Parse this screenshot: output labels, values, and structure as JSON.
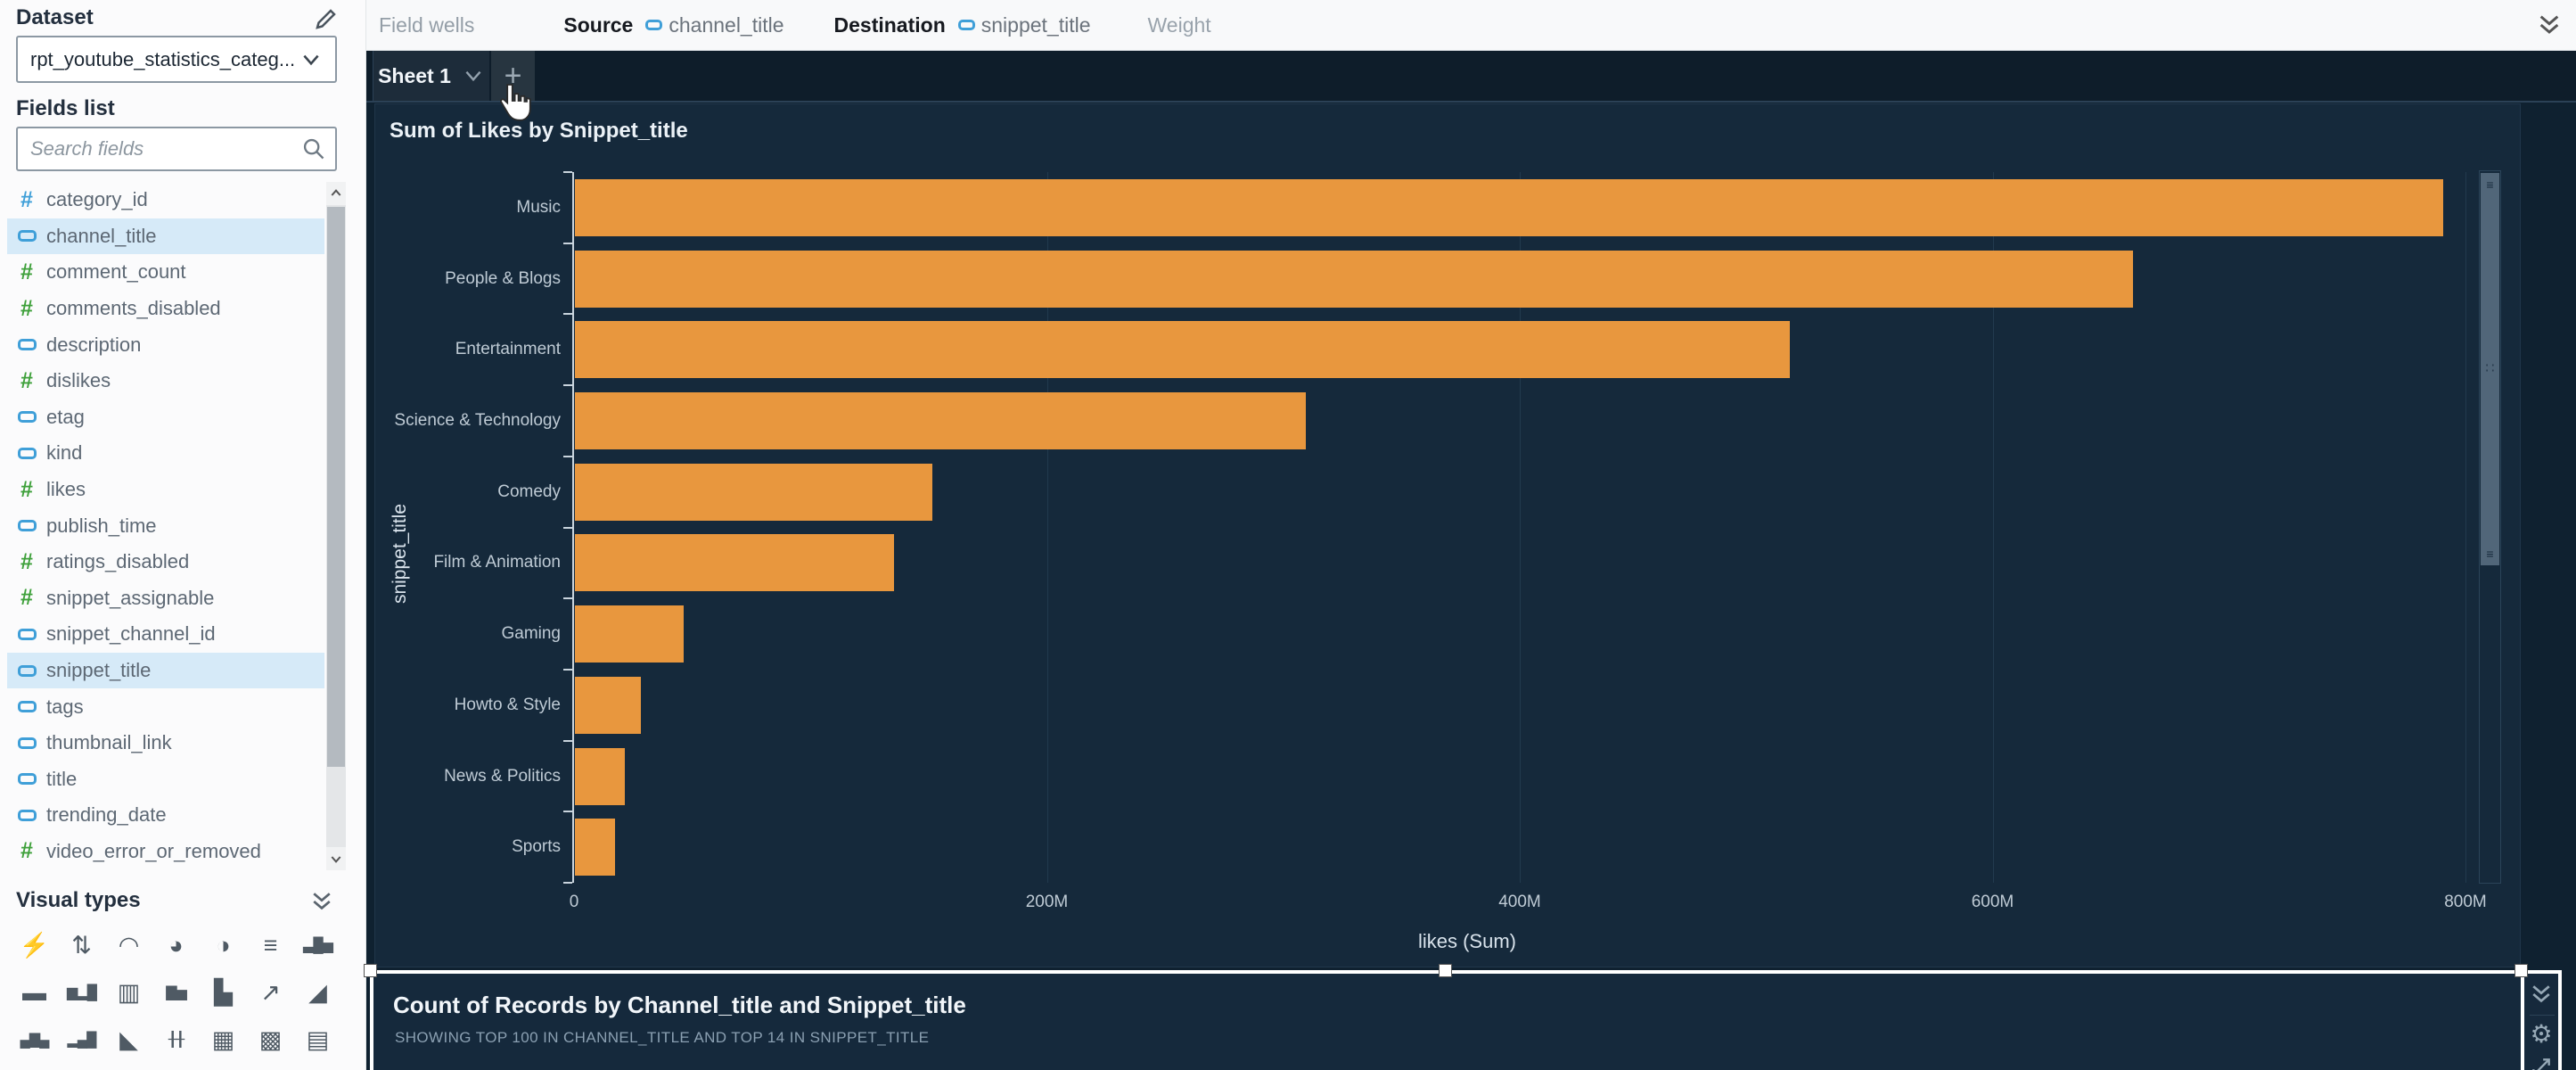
{
  "sidebar": {
    "dataset_label": "Dataset",
    "dataset_value": "rpt_youtube_statistics_categ...",
    "fields_list_label": "Fields list",
    "search_placeholder": "Search fields",
    "fields": [
      {
        "name": "category_id",
        "type": "numeric-dimension",
        "selected": false
      },
      {
        "name": "channel_title",
        "type": "dimension",
        "selected": true
      },
      {
        "name": "comment_count",
        "type": "measure",
        "selected": false
      },
      {
        "name": "comments_disabled",
        "type": "measure",
        "selected": false
      },
      {
        "name": "description",
        "type": "dimension",
        "selected": false
      },
      {
        "name": "dislikes",
        "type": "measure",
        "selected": false
      },
      {
        "name": "etag",
        "type": "dimension",
        "selected": false
      },
      {
        "name": "kind",
        "type": "dimension",
        "selected": false
      },
      {
        "name": "likes",
        "type": "measure",
        "selected": false
      },
      {
        "name": "publish_time",
        "type": "dimension",
        "selected": false
      },
      {
        "name": "ratings_disabled",
        "type": "measure",
        "selected": false
      },
      {
        "name": "snippet_assignable",
        "type": "measure",
        "selected": false
      },
      {
        "name": "snippet_channel_id",
        "type": "dimension",
        "selected": false
      },
      {
        "name": "snippet_title",
        "type": "dimension",
        "selected": true
      },
      {
        "name": "tags",
        "type": "dimension",
        "selected": false
      },
      {
        "name": "thumbnail_link",
        "type": "dimension",
        "selected": false
      },
      {
        "name": "title",
        "type": "dimension",
        "selected": false
      },
      {
        "name": "trending_date",
        "type": "dimension",
        "selected": false
      },
      {
        "name": "video_error_or_removed",
        "type": "measure",
        "selected": false
      }
    ],
    "visual_types_label": "Visual types",
    "visual_types": [
      {
        "name": "auto-graph",
        "glyph": "⚡"
      },
      {
        "name": "kpi",
        "glyph": "⇅"
      },
      {
        "name": "gauge-chart",
        "glyph": "◠"
      },
      {
        "name": "donut-chart",
        "glyph": "◕"
      },
      {
        "name": "pie-chart",
        "glyph": "◑"
      },
      {
        "name": "horizontal-stacked-bar-chart",
        "glyph": "≡"
      },
      {
        "name": "vertical-bar-chart",
        "glyph": "▃█▅"
      },
      {
        "name": "horizontal-bar-chart",
        "glyph": "▬"
      },
      {
        "name": "vertical-bar-clustered-chart",
        "glyph": "▆▂█"
      },
      {
        "name": "horizontal-stacked-100-bar-chart",
        "glyph": "▥"
      },
      {
        "name": "vertical-stacked-bar-chart",
        "glyph": "▇▅"
      },
      {
        "name": "waterfall-chart",
        "glyph": "▙"
      },
      {
        "name": "line-chart",
        "glyph": "↗"
      },
      {
        "name": "area-chart",
        "glyph": "◢"
      },
      {
        "name": "combo-bar-line-chart",
        "glyph": "▄▇▄"
      },
      {
        "name": "combo-clustered-chart",
        "glyph": "▂▄█"
      },
      {
        "name": "area-line-chart",
        "glyph": "◣"
      },
      {
        "name": "box-plot",
        "glyph": "╂╂"
      },
      {
        "name": "heat-map",
        "glyph": "▦"
      },
      {
        "name": "pivot-table",
        "glyph": "▩"
      },
      {
        "name": "table",
        "glyph": "▤"
      }
    ]
  },
  "field_wells": {
    "label": "Field wells",
    "source_label": "Source",
    "source_field": "channel_title",
    "destination_label": "Destination",
    "destination_field": "snippet_title",
    "weight_label": "Weight"
  },
  "sheet_tabs": {
    "active_tab": "Sheet 1",
    "add_button": "+"
  },
  "visual1": {
    "title": "Sum of Likes by Snippet_title"
  },
  "chart_data": {
    "type": "bar",
    "orientation": "horizontal",
    "title": "Sum of Likes by Snippet_title",
    "categories": [
      "Music",
      "People & Blogs",
      "Entertainment",
      "Science & Technology",
      "Comedy",
      "Film & Animation",
      "Gaming",
      "Howto & Style",
      "News & Politics",
      "Sports"
    ],
    "series": [
      {
        "name": "likes (Sum)",
        "values_millions": [
          790,
          659,
          514,
          309,
          151,
          135,
          46,
          28,
          21,
          17
        ]
      }
    ],
    "xlabel": "likes (Sum)",
    "ylabel": "snippet_title",
    "x_ticks": [
      {
        "label": "0",
        "millions": 0
      },
      {
        "label": "200M",
        "millions": 200
      },
      {
        "label": "400M",
        "millions": 400
      },
      {
        "label": "600M",
        "millions": 600
      },
      {
        "label": "800M",
        "millions": 800
      }
    ],
    "xlim_millions": [
      0,
      830
    ],
    "bar_color": "#e8973e",
    "grid": "vertical-gridlines-only",
    "legend": "none"
  },
  "visual2": {
    "title": "Count of Records by Channel_title and Snippet_title",
    "subtitle": "SHOWING TOP 100 IN CHANNEL_TITLE AND TOP 14 IN SNIPPET_TITLE"
  }
}
